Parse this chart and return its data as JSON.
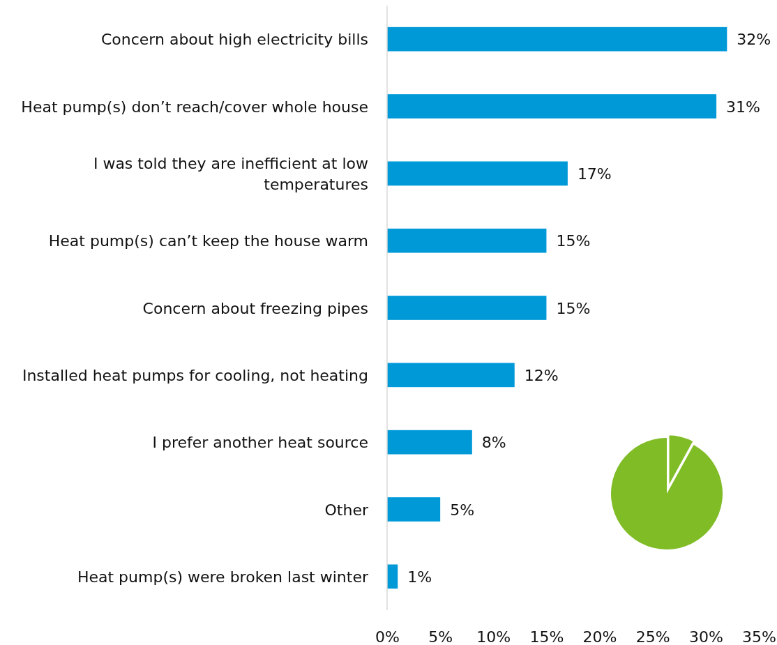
{
  "chart_data": [
    {
      "type": "bar",
      "orientation": "horizontal",
      "categories": [
        "Concern about high electricity bills",
        "Heat pump(s) don’t reach/cover whole house",
        "I was told they are inefficient at low temperatures",
        "Heat pump(s) can’t keep the house warm",
        "Concern about freezing pipes",
        "Installed heat pumps for cooling, not heating",
        "I prefer another heat source",
        "Other",
        "Heat pump(s) were broken last winter"
      ],
      "values": [
        32,
        31,
        17,
        15,
        15,
        12,
        8,
        5,
        1
      ],
      "value_labels": [
        "32%",
        "31%",
        "17%",
        "15%",
        "15%",
        "12%",
        "8%",
        "5%",
        "1%"
      ],
      "color": "#0099d8",
      "xlim": [
        0,
        35
      ],
      "xticks": [
        {
          "value": 0,
          "label": "0%"
        },
        {
          "value": 5,
          "label": "5%"
        },
        {
          "value": 10,
          "label": "10%"
        },
        {
          "value": 15,
          "label": "15%"
        },
        {
          "value": 20,
          "label": "20%"
        },
        {
          "value": 25,
          "label": "25%"
        },
        {
          "value": 30,
          "label": "30%"
        },
        {
          "value": 35,
          "label": "35%"
        }
      ],
      "grid": false
    },
    {
      "type": "pie",
      "categories": [
        null,
        null
      ],
      "values": [
        8,
        92
      ],
      "colors": [
        "#80bc26",
        "#80bc26"
      ]
    }
  ]
}
